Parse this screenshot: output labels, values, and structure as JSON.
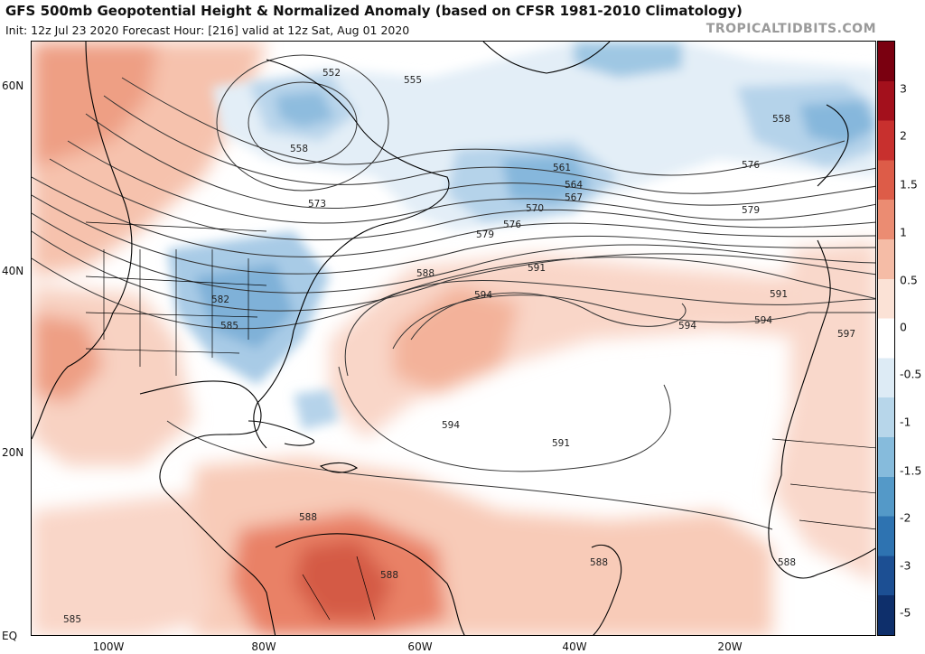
{
  "header": {
    "title": "GFS 500mb Geopotential Height & Normalized Anomaly (based on CFSR 1981-2010 Climatology)",
    "subtitle": "Init: 12z Jul 23 2020   Forecast Hour: [216]   valid at 12z Sat, Aug 01 2020",
    "credit": "TROPICALTIDBITS.COM"
  },
  "axes": {
    "lat_labels": [
      "60N",
      "40N",
      "20N",
      "EQ"
    ],
    "lon_labels": [
      "100W",
      "80W",
      "60W",
      "40W",
      "20W"
    ]
  },
  "colorbar": {
    "labels": [
      "3",
      "2",
      "1.5",
      "1",
      "0.5",
      "0",
      "-0.5",
      "-1",
      "-1.5",
      "-2",
      "-3",
      "-5"
    ],
    "colors": [
      "#7a0010",
      "#a3101c",
      "#c8302e",
      "#dd5c48",
      "#eb8c72",
      "#f5bca6",
      "#fbe2d6",
      "#ffffff",
      "#ddebf5",
      "#b7d6ea",
      "#86bbdc",
      "#5499c8",
      "#2e73b1",
      "#1c4f93",
      "#0e2f6b"
    ]
  },
  "contour_labels": [
    "552",
    "555",
    "558",
    "561",
    "564",
    "567",
    "570",
    "573",
    "576",
    "579",
    "582",
    "585",
    "588",
    "591",
    "594",
    "597"
  ],
  "colors": {
    "positive_anomaly": "#f3a98f",
    "negative_anomaly": "#7fb1d8",
    "contour": "#333333",
    "coastline": "#000000"
  }
}
